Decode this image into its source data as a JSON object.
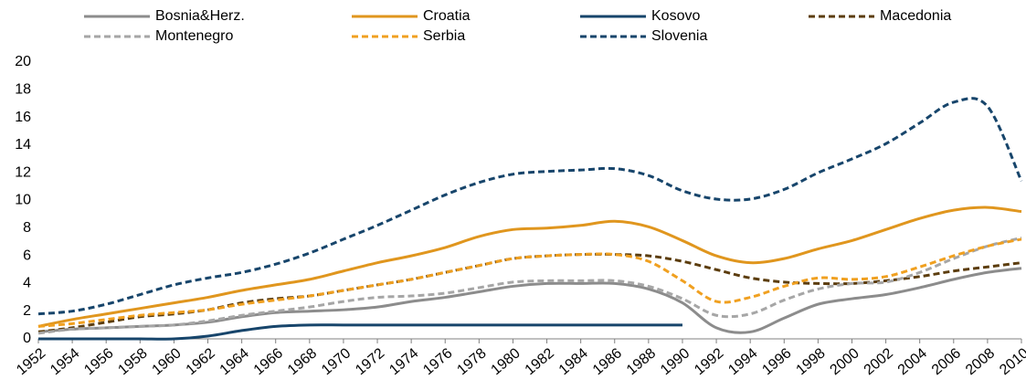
{
  "chart_data": {
    "type": "line",
    "x": [
      1952,
      1954,
      1956,
      1958,
      1960,
      1962,
      1964,
      1966,
      1968,
      1970,
      1972,
      1974,
      1976,
      1978,
      1980,
      1982,
      1984,
      1986,
      1988,
      1990,
      1992,
      1994,
      1996,
      1998,
      2000,
      2002,
      2004,
      2006,
      2008,
      2010
    ],
    "xlim": [
      1952,
      2010
    ],
    "xticks": [
      1952,
      1954,
      1956,
      1958,
      1960,
      1962,
      1964,
      1966,
      1968,
      1970,
      1972,
      1974,
      1976,
      1978,
      1980,
      1982,
      1984,
      1986,
      1988,
      1990,
      1992,
      1994,
      1996,
      1998,
      2000,
      2002,
      2004,
      2006,
      2008,
      2010
    ],
    "ylim": [
      0,
      20
    ],
    "yticks": [
      0,
      2,
      4,
      6,
      8,
      10,
      12,
      14,
      16,
      18,
      20
    ],
    "grid": false,
    "legend": "top",
    "series": [
      {
        "name": "Bosnia&Herz.",
        "color": "#8c8c8c",
        "dashed": false,
        "values": [
          0.5,
          0.7,
          0.8,
          0.9,
          1.0,
          1.2,
          1.6,
          1.9,
          2.0,
          2.1,
          2.3,
          2.7,
          3.0,
          3.4,
          3.8,
          4.0,
          4.0,
          4.0,
          3.6,
          2.6,
          0.8,
          0.5,
          1.5,
          2.5,
          2.9,
          3.2,
          3.7,
          4.3,
          4.8,
          5.1
        ]
      },
      {
        "name": "Croatia",
        "color": "#e0961e",
        "dashed": false,
        "values": [
          0.9,
          1.4,
          1.8,
          2.2,
          2.6,
          3.0,
          3.5,
          3.9,
          4.3,
          4.9,
          5.5,
          6.0,
          6.6,
          7.4,
          7.9,
          8.0,
          8.2,
          8.5,
          8.1,
          7.1,
          6.0,
          5.5,
          5.8,
          6.5,
          7.1,
          7.9,
          8.7,
          9.3,
          9.5,
          9.2
        ]
      },
      {
        "name": "Kosovo",
        "color": "#17456b",
        "dashed": false,
        "values": [
          0,
          0,
          0,
          0,
          0,
          0.2,
          0.6,
          0.9,
          1.0,
          1.0,
          1.0,
          1.0,
          1.0,
          1.0,
          1.0,
          1.0,
          1.0,
          1.0,
          1.0,
          1.0,
          null,
          null,
          null,
          null,
          null,
          null,
          null,
          null,
          null,
          null
        ]
      },
      {
        "name": "Macedonia",
        "color": "#5c3d0e",
        "dashed": true,
        "values": [
          0.5,
          0.8,
          1.2,
          1.6,
          1.8,
          2.1,
          2.6,
          2.9,
          3.1,
          3.5,
          3.9,
          4.3,
          4.8,
          5.3,
          5.8,
          6.0,
          6.1,
          6.1,
          6.0,
          5.6,
          5.0,
          4.4,
          4.1,
          4.0,
          4.0,
          4.2,
          4.5,
          4.9,
          5.2,
          5.5
        ]
      },
      {
        "name": "Montenegro",
        "color": "#a6a6a6",
        "dashed": true,
        "values": [
          0.4,
          0.7,
          0.8,
          0.9,
          1.0,
          1.3,
          1.7,
          2.0,
          2.3,
          2.7,
          3.0,
          3.1,
          3.3,
          3.7,
          4.1,
          4.2,
          4.2,
          4.2,
          3.8,
          2.9,
          1.7,
          1.8,
          2.8,
          3.6,
          4.0,
          4.1,
          4.8,
          5.8,
          6.7,
          7.3
        ]
      },
      {
        "name": "Serbia",
        "color": "#f0a020",
        "dashed": true,
        "values": [
          0.9,
          1.1,
          1.4,
          1.7,
          1.9,
          2.1,
          2.5,
          2.8,
          3.1,
          3.5,
          3.9,
          4.3,
          4.8,
          5.3,
          5.8,
          6.0,
          6.1,
          6.1,
          5.6,
          4.2,
          2.7,
          3.0,
          3.8,
          4.4,
          4.3,
          4.5,
          5.2,
          6.0,
          6.7,
          7.2
        ]
      },
      {
        "name": "Slovenia",
        "color": "#17456b",
        "dashed": true,
        "values": [
          1.8,
          2.0,
          2.5,
          3.2,
          3.9,
          4.4,
          4.8,
          5.4,
          6.2,
          7.2,
          8.2,
          9.3,
          10.4,
          11.3,
          11.9,
          12.1,
          12.2,
          12.3,
          11.8,
          10.7,
          10.1,
          10.1,
          10.8,
          12.0,
          13.0,
          14.1,
          15.6,
          17.1,
          16.8,
          11.4
        ]
      }
    ]
  }
}
